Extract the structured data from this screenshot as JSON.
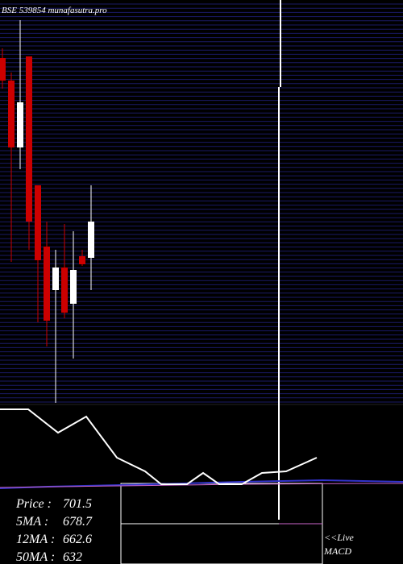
{
  "chart_data": [
    {
      "type": "candlestick",
      "title": "BSE 539854  munafasutra.pro",
      "ylim": [
        476,
        976
      ],
      "up_color": "#ffffff",
      "down_color": "#cc0000",
      "open": [
        904,
        876,
        793,
        906,
        746,
        670,
        616,
        644,
        599,
        658,
        656
      ],
      "close": [
        876,
        793,
        849,
        701,
        653,
        578,
        644,
        588,
        641,
        648,
        701
      ],
      "high": [
        916,
        886,
        951,
        906,
        746,
        701,
        666,
        698,
        689,
        666,
        746
      ],
      "low": [
        866,
        651,
        766,
        666,
        576,
        546,
        476,
        581,
        531,
        646,
        616
      ]
    },
    {
      "type": "line",
      "color": "#ffffff",
      "x": [
        0,
        35,
        72,
        107,
        145,
        180,
        200,
        232,
        252,
        272,
        300,
        325,
        355,
        393
      ],
      "values": [
        192,
        192,
        163,
        183,
        132,
        115,
        99,
        99,
        113,
        99,
        99,
        113,
        115,
        132
      ],
      "ylim": [
        90,
        200
      ]
    },
    {
      "type": "info",
      "items": [
        {
          "label": "Price   :",
          "value": 701.5
        },
        {
          "label": "5MA :",
          "value": 678.7
        },
        {
          "label": "12MA :",
          "value": 662.6
        },
        {
          "label": "50MA :",
          "value": 632
        }
      ],
      "notes": [
        "<<Live",
        "MACD"
      ]
    }
  ]
}
